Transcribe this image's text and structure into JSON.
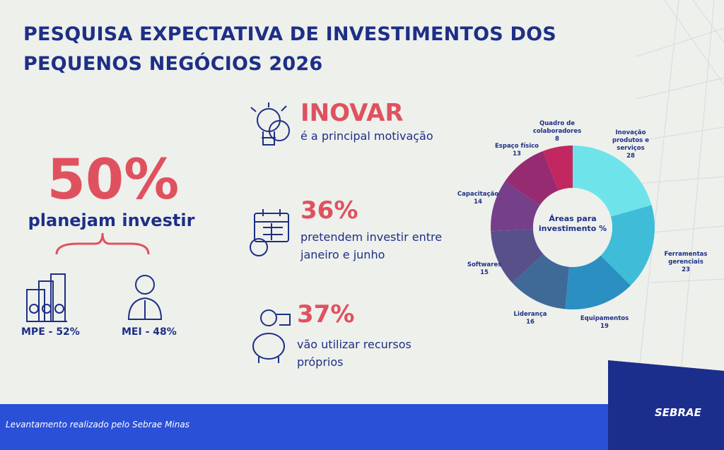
{
  "header": {
    "title": "PESQUISA EXPECTATIVA DE INVESTIMENTOS DOS PEQUENOS NEGÓCIOS 2026"
  },
  "main_stat": {
    "value": "50%",
    "label": "planejam investir",
    "split": [
      "MPE - 52%",
      "MEI - 48%"
    ]
  },
  "highlights": [
    {
      "value": "INOVAR",
      "text": "é a principal motivação"
    },
    {
      "value": "36%",
      "text": "pretendem investir entre janeiro e junho"
    },
    {
      "value": "37%",
      "text": "vão utilizar recursos próprios"
    }
  ],
  "chart_data": {
    "type": "pie",
    "center_label": "Áreas para investimento %",
    "categories": [
      "Inovação produtos e serviços",
      "Ferramentas gerenciais",
      "Equipamentos",
      "Liderança",
      "Softwares",
      "Capacitação",
      "Espaço físico",
      "Quadro de colaboradores"
    ],
    "values": [
      28,
      23,
      19,
      16,
      15,
      14,
      13,
      8
    ],
    "colors": [
      "#6ee4ea",
      "#3fbdd8",
      "#2c8fc2",
      "#3f6997",
      "#575089",
      "#763f89",
      "#962b72",
      "#c2285f"
    ]
  },
  "footer": {
    "note": "Levantamento realizado pelo Sebrae Minas",
    "logo": "SEBRAE"
  }
}
